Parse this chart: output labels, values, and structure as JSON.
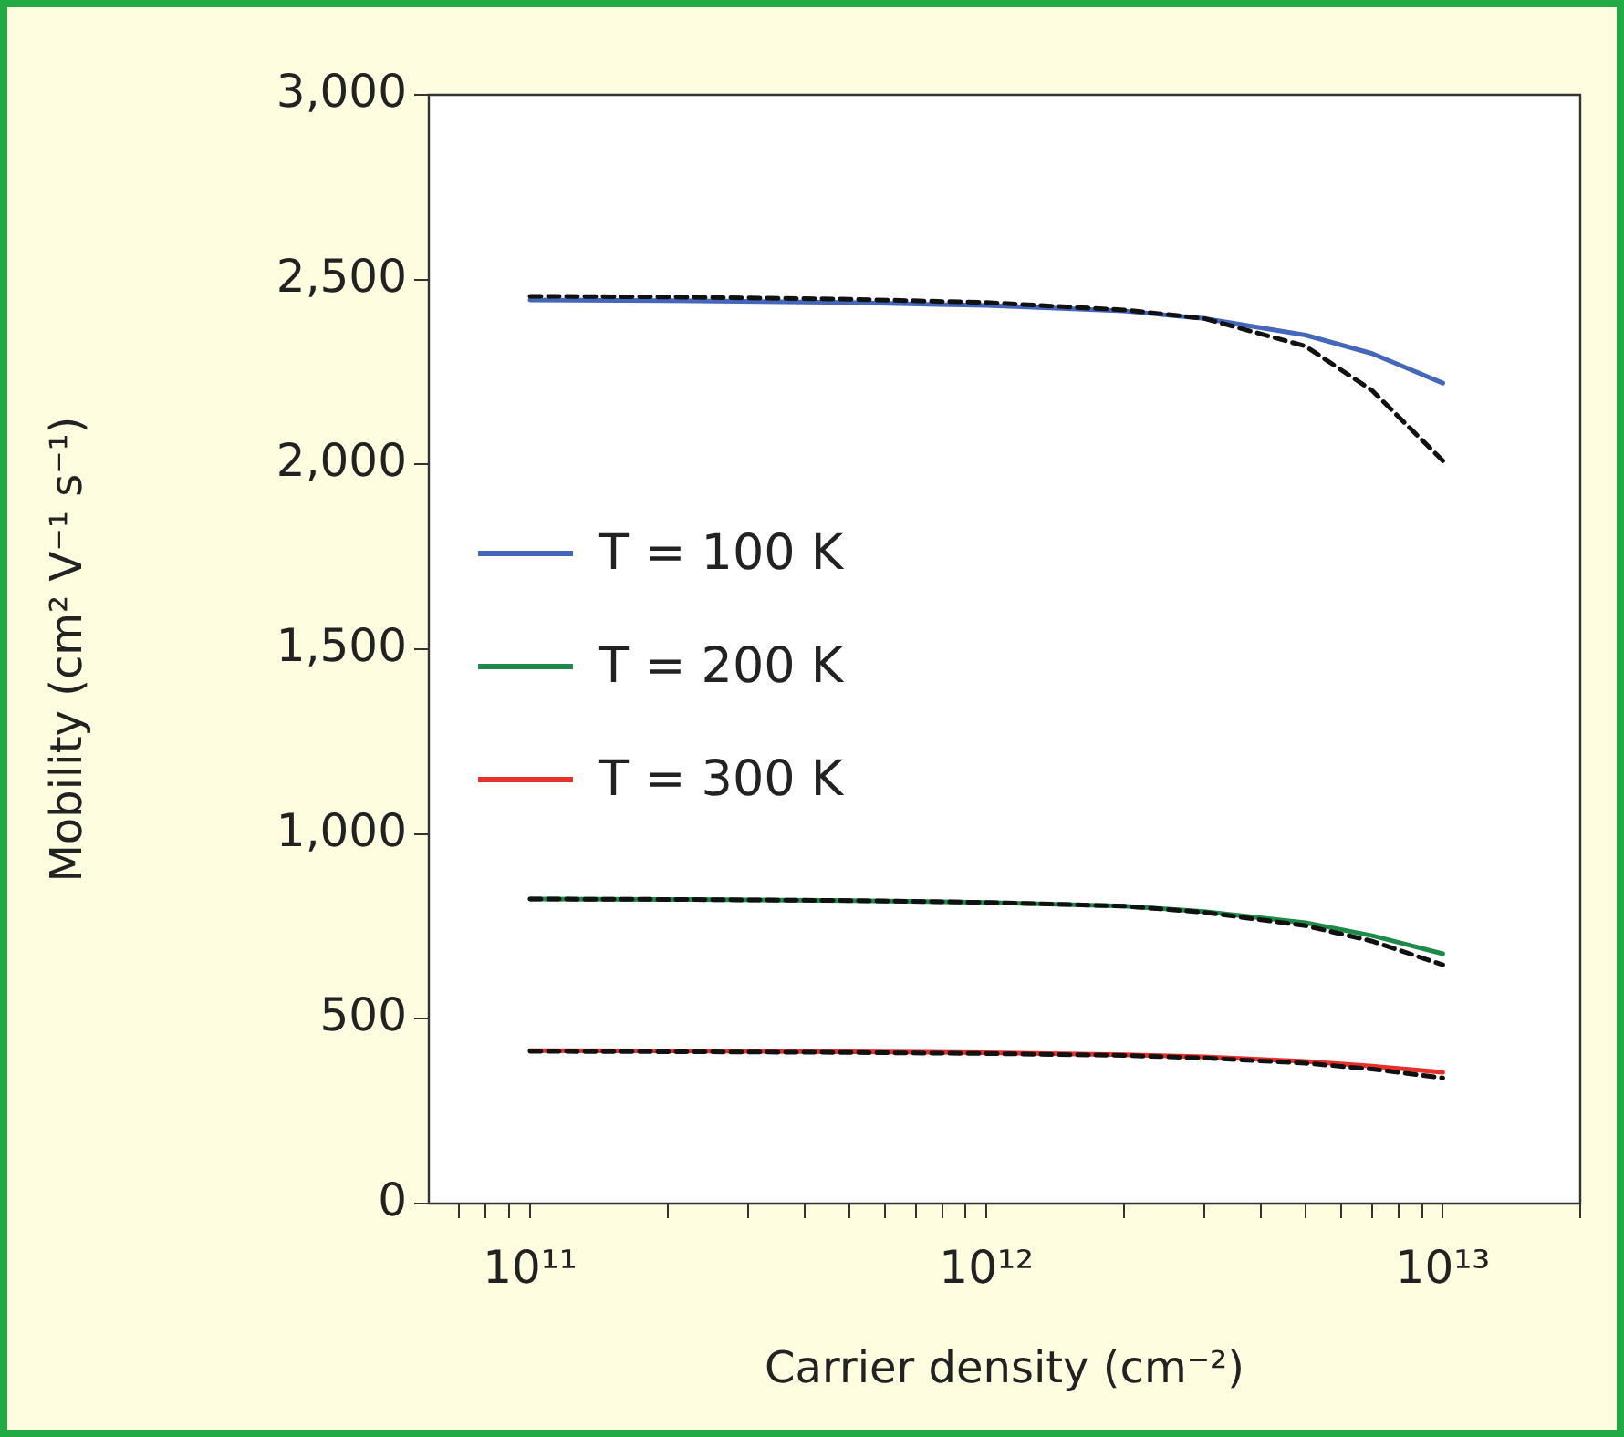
{
  "chart_data": {
    "type": "line",
    "xlabel": "Carrier density (cm⁻²)",
    "ylabel": "Mobility (cm² V⁻¹ s⁻¹)",
    "x": [
      100000000000.0,
      200000000000.0,
      500000000000.0,
      1000000000000.0,
      2000000000000.0,
      3000000000000.0,
      5000000000000.0,
      7000000000000.0,
      10000000000000.0
    ],
    "series": [
      {
        "name": "T = 100 K",
        "color": "#4466bb",
        "values": [
          2445,
          2443,
          2438,
          2430,
          2415,
          2395,
          2350,
          2300,
          2220
        ]
      },
      {
        "color": "#111111",
        "line_style": "dashed",
        "values": [
          2455,
          2453,
          2447,
          2438,
          2418,
          2395,
          2320,
          2200,
          2010
        ]
      },
      {
        "name": "T = 200 K",
        "color": "#1e8a4a",
        "values": [
          824,
          823,
          820,
          815,
          805,
          790,
          760,
          725,
          676
        ]
      },
      {
        "color": "#111111",
        "line_style": "dashed",
        "values": [
          824,
          823,
          820,
          815,
          805,
          788,
          752,
          710,
          646
        ]
      },
      {
        "name": "T = 300 K",
        "color": "#e8302a",
        "values": [
          414,
          413,
          411,
          408,
          403,
          397,
          385,
          372,
          355
        ]
      },
      {
        "color": "#111111",
        "line_style": "dashed",
        "values": [
          412,
          411,
          409,
          406,
          401,
          394,
          380,
          364,
          340
        ]
      }
    ],
    "log": "x",
    "xlim": [
      60000000000.0,
      20000000000000.0
    ],
    "xticks": [
      {
        "value": 70000000000.0,
        "label": null
      },
      {
        "value": 80000000000.0,
        "label": null
      },
      {
        "value": 90000000000.0,
        "label": null
      },
      {
        "value": 100000000000.0,
        "label": "10¹¹"
      },
      {
        "value": 200000000000.0,
        "label": null
      },
      {
        "value": 300000000000.0,
        "label": null
      },
      {
        "value": 400000000000.0,
        "label": null
      },
      {
        "value": 500000000000.0,
        "label": null
      },
      {
        "value": 600000000000.0,
        "label": null
      },
      {
        "value": 700000000000.0,
        "label": null
      },
      {
        "value": 800000000000.0,
        "label": null
      },
      {
        "value": 900000000000.0,
        "label": null
      },
      {
        "value": 1000000000000.0,
        "label": "10¹²"
      },
      {
        "value": 2000000000000.0,
        "label": null
      },
      {
        "value": 3000000000000.0,
        "label": null
      },
      {
        "value": 4000000000000.0,
        "label": null
      },
      {
        "value": 5000000000000.0,
        "label": null
      },
      {
        "value": 6000000000000.0,
        "label": null
      },
      {
        "value": 7000000000000.0,
        "label": null
      },
      {
        "value": 8000000000000.0,
        "label": null
      },
      {
        "value": 9000000000000.0,
        "label": null
      },
      {
        "value": 10000000000000.0,
        "label": "10¹³"
      },
      {
        "value": 20000000000000.0,
        "label": null
      }
    ],
    "ylim": [
      0,
      3000
    ],
    "yticks": [
      0,
      500,
      {
        "value": 1000,
        "label": "1,000"
      },
      {
        "value": 1500,
        "label": "1,500"
      },
      {
        "value": 2000,
        "label": "2,000"
      },
      {
        "value": 2500,
        "label": "2,500"
      },
      {
        "value": 3000,
        "label": "3,000"
      }
    ],
    "grid": false,
    "legend": "left",
    "marker": "none",
    "line_style": "solid"
  }
}
